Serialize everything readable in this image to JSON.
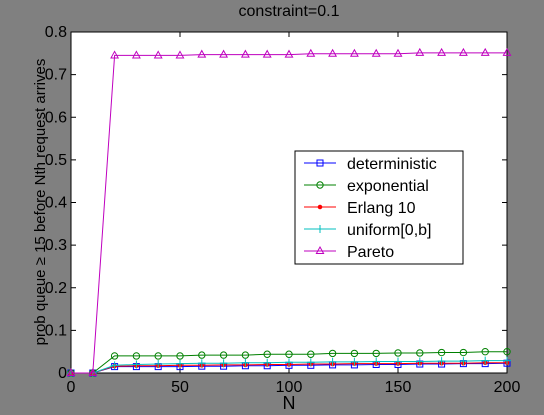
{
  "chart_data": {
    "type": "line",
    "title": "constraint=0.1",
    "xlabel": "N",
    "ylabel": "prob queue ≥ 15 before Nth request arrives",
    "xlim": [
      0,
      200
    ],
    "ylim": [
      0,
      0.8
    ],
    "xticks": [
      0,
      50,
      100,
      150,
      200
    ],
    "yticks": [
      0,
      0.1,
      0.2,
      0.3,
      0.4,
      0.5,
      0.6,
      0.7,
      0.8
    ],
    "grid": false,
    "legend_position": "right-center",
    "x": [
      0,
      10,
      20,
      30,
      40,
      50,
      60,
      70,
      80,
      90,
      100,
      110,
      120,
      130,
      140,
      150,
      160,
      170,
      180,
      190,
      200
    ],
    "series": [
      {
        "name": "deterministic",
        "color": "#0000ff",
        "marker": "square",
        "values": [
          0,
          0,
          0.015,
          0.015,
          0.015,
          0.015,
          0.016,
          0.016,
          0.017,
          0.017,
          0.018,
          0.018,
          0.019,
          0.019,
          0.02,
          0.02,
          0.021,
          0.021,
          0.022,
          0.022,
          0.023
        ]
      },
      {
        "name": "exponential",
        "color": "#008000",
        "marker": "circle",
        "values": [
          0,
          0,
          0.04,
          0.04,
          0.04,
          0.04,
          0.042,
          0.042,
          0.042,
          0.044,
          0.044,
          0.044,
          0.046,
          0.046,
          0.046,
          0.047,
          0.047,
          0.048,
          0.048,
          0.05,
          0.05
        ]
      },
      {
        "name": "Erlang 10",
        "color": "#ff0000",
        "marker": "dot",
        "values": [
          0,
          0,
          0.016,
          0.017,
          0.017,
          0.018,
          0.018,
          0.019,
          0.019,
          0.02,
          0.02,
          0.021,
          0.021,
          0.022,
          0.022,
          0.022,
          0.023,
          0.023,
          0.023,
          0.024,
          0.024
        ]
      },
      {
        "name": "uniform[0,b]",
        "color": "#00bfbf",
        "marker": "plus",
        "values": [
          0,
          0,
          0.018,
          0.02,
          0.021,
          0.022,
          0.023,
          0.023,
          0.024,
          0.024,
          0.025,
          0.025,
          0.026,
          0.026,
          0.027,
          0.027,
          0.027,
          0.028,
          0.028,
          0.029,
          0.029
        ]
      },
      {
        "name": "Pareto",
        "color": "#bf00bf",
        "marker": "triangle",
        "values": [
          0,
          0,
          0.745,
          0.745,
          0.745,
          0.745,
          0.747,
          0.747,
          0.747,
          0.747,
          0.747,
          0.749,
          0.749,
          0.749,
          0.749,
          0.749,
          0.751,
          0.751,
          0.751,
          0.751,
          0.751
        ]
      }
    ]
  }
}
